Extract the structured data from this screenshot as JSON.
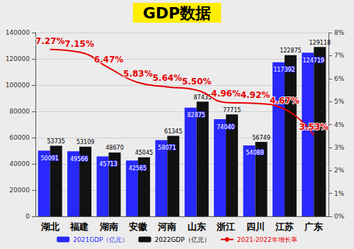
{
  "chart_data": {
    "type": "bar",
    "title": "GDP数据",
    "categories": [
      "湖北",
      "福建",
      "湖南",
      "安徽",
      "河南",
      "山东",
      "浙江",
      "四川",
      "江苏",
      "广东"
    ],
    "series": [
      {
        "name": "2021GDP（亿元）",
        "type": "bar",
        "color": "#2828ff",
        "values": [
          50091,
          49566,
          45713,
          42565,
          58071,
          82875,
          74040,
          54088,
          117392,
          124719
        ]
      },
      {
        "name": "2022GDP（亿元）",
        "type": "bar",
        "color": "#111111",
        "values": [
          53735,
          53109,
          48670,
          45045,
          61345,
          87435,
          77715,
          56749,
          122875,
          129118
        ]
      },
      {
        "name": "2021-2022年增长率",
        "type": "line",
        "color": "#e60000",
        "axis": "y2",
        "values": [
          7.27,
          7.15,
          6.47,
          5.83,
          5.64,
          5.5,
          4.96,
          4.92,
          4.67,
          3.53
        ],
        "value_labels": [
          "7.27%",
          "7.15%",
          "6.47%",
          "5.83%",
          "5.64%",
          "5.50%",
          "4.96%",
          "4.92%",
          "4.67%",
          "3.53%"
        ]
      }
    ],
    "ylim": [
      0,
      140000
    ],
    "yticks": [
      0,
      20000,
      40000,
      60000,
      80000,
      100000,
      120000,
      140000
    ],
    "y2lim": [
      0,
      8
    ],
    "y2ticks": [
      {
        "value": 0,
        "label": "0%"
      },
      {
        "value": 1,
        "label": "1%"
      },
      {
        "value": 2,
        "label": "2%"
      },
      {
        "value": 3,
        "label": "3%"
      },
      {
        "value": 4,
        "label": "4%"
      },
      {
        "value": 5,
        "label": "5%"
      },
      {
        "value": 6,
        "label": "6%"
      },
      {
        "value": 7,
        "label": "7%"
      },
      {
        "value": 8,
        "label": "8%"
      }
    ],
    "grid": true,
    "legend": "bottom",
    "data_labels": true
  }
}
